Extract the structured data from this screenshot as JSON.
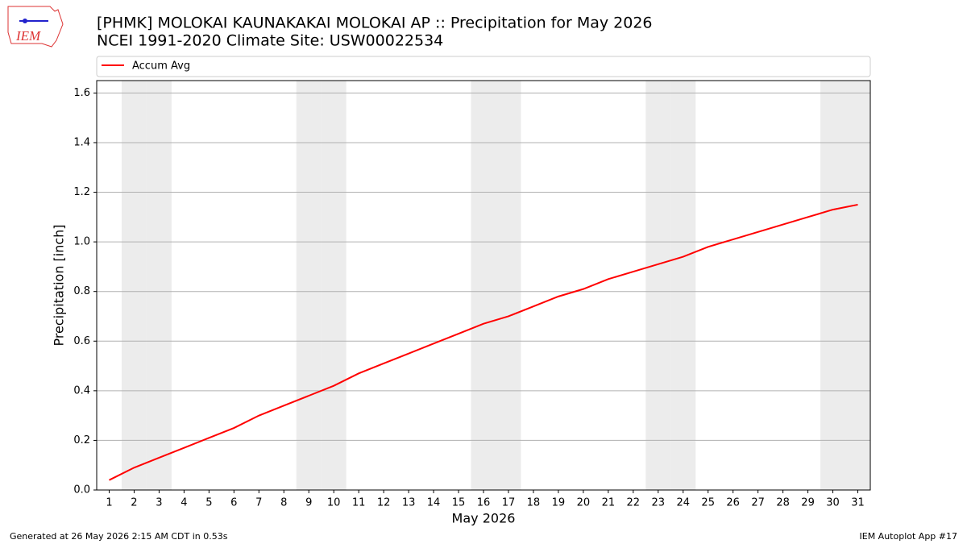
{
  "logo_text": "IEM",
  "chart_data": {
    "type": "line",
    "title": "[PHMK] MOLOKAI KAUNAKAKAI MOLOKAI AP :: Precipitation for May 2026",
    "subtitle": "NCEI 1991-2020 Climate Site: USW00022534",
    "x_label": "May 2026",
    "y_label": "Precipitation [inch]",
    "x": [
      1,
      2,
      3,
      4,
      5,
      6,
      7,
      8,
      9,
      10,
      11,
      12,
      13,
      14,
      15,
      16,
      17,
      18,
      19,
      20,
      21,
      22,
      23,
      24,
      25,
      26,
      27,
      28,
      29,
      30,
      31
    ],
    "series": [
      {
        "name": "Accum Avg",
        "color": "#ff0000",
        "values": [
          0.04,
          0.09,
          0.13,
          0.17,
          0.21,
          0.25,
          0.3,
          0.34,
          0.38,
          0.42,
          0.47,
          0.51,
          0.55,
          0.59,
          0.63,
          0.67,
          0.7,
          0.74,
          0.78,
          0.81,
          0.85,
          0.88,
          0.91,
          0.94,
          0.98,
          1.01,
          1.04,
          1.07,
          1.1,
          1.13,
          1.15
        ]
      }
    ],
    "shaded_days": [
      2,
      3,
      9,
      10,
      16,
      17,
      23,
      24,
      30,
      31
    ],
    "xlim": [
      0.5,
      31.5
    ],
    "ylim": [
      0,
      1.65
    ],
    "xticks": [
      1,
      2,
      3,
      4,
      5,
      6,
      7,
      8,
      9,
      10,
      11,
      12,
      13,
      14,
      15,
      16,
      17,
      18,
      19,
      20,
      21,
      22,
      23,
      24,
      25,
      26,
      27,
      28,
      29,
      30,
      31
    ],
    "yticks": [
      {
        "value": 0,
        "label": "0.0"
      },
      0.2,
      0.4,
      0.6,
      0.8,
      {
        "value": 1,
        "label": "1.0"
      },
      1.2,
      1.4,
      1.6
    ],
    "grid": true,
    "legend_position": "top",
    "footer_left": "Generated at 26 May 2026 2:15 AM CDT in 0.53s",
    "footer_right": "IEM Autoplot App #17"
  }
}
